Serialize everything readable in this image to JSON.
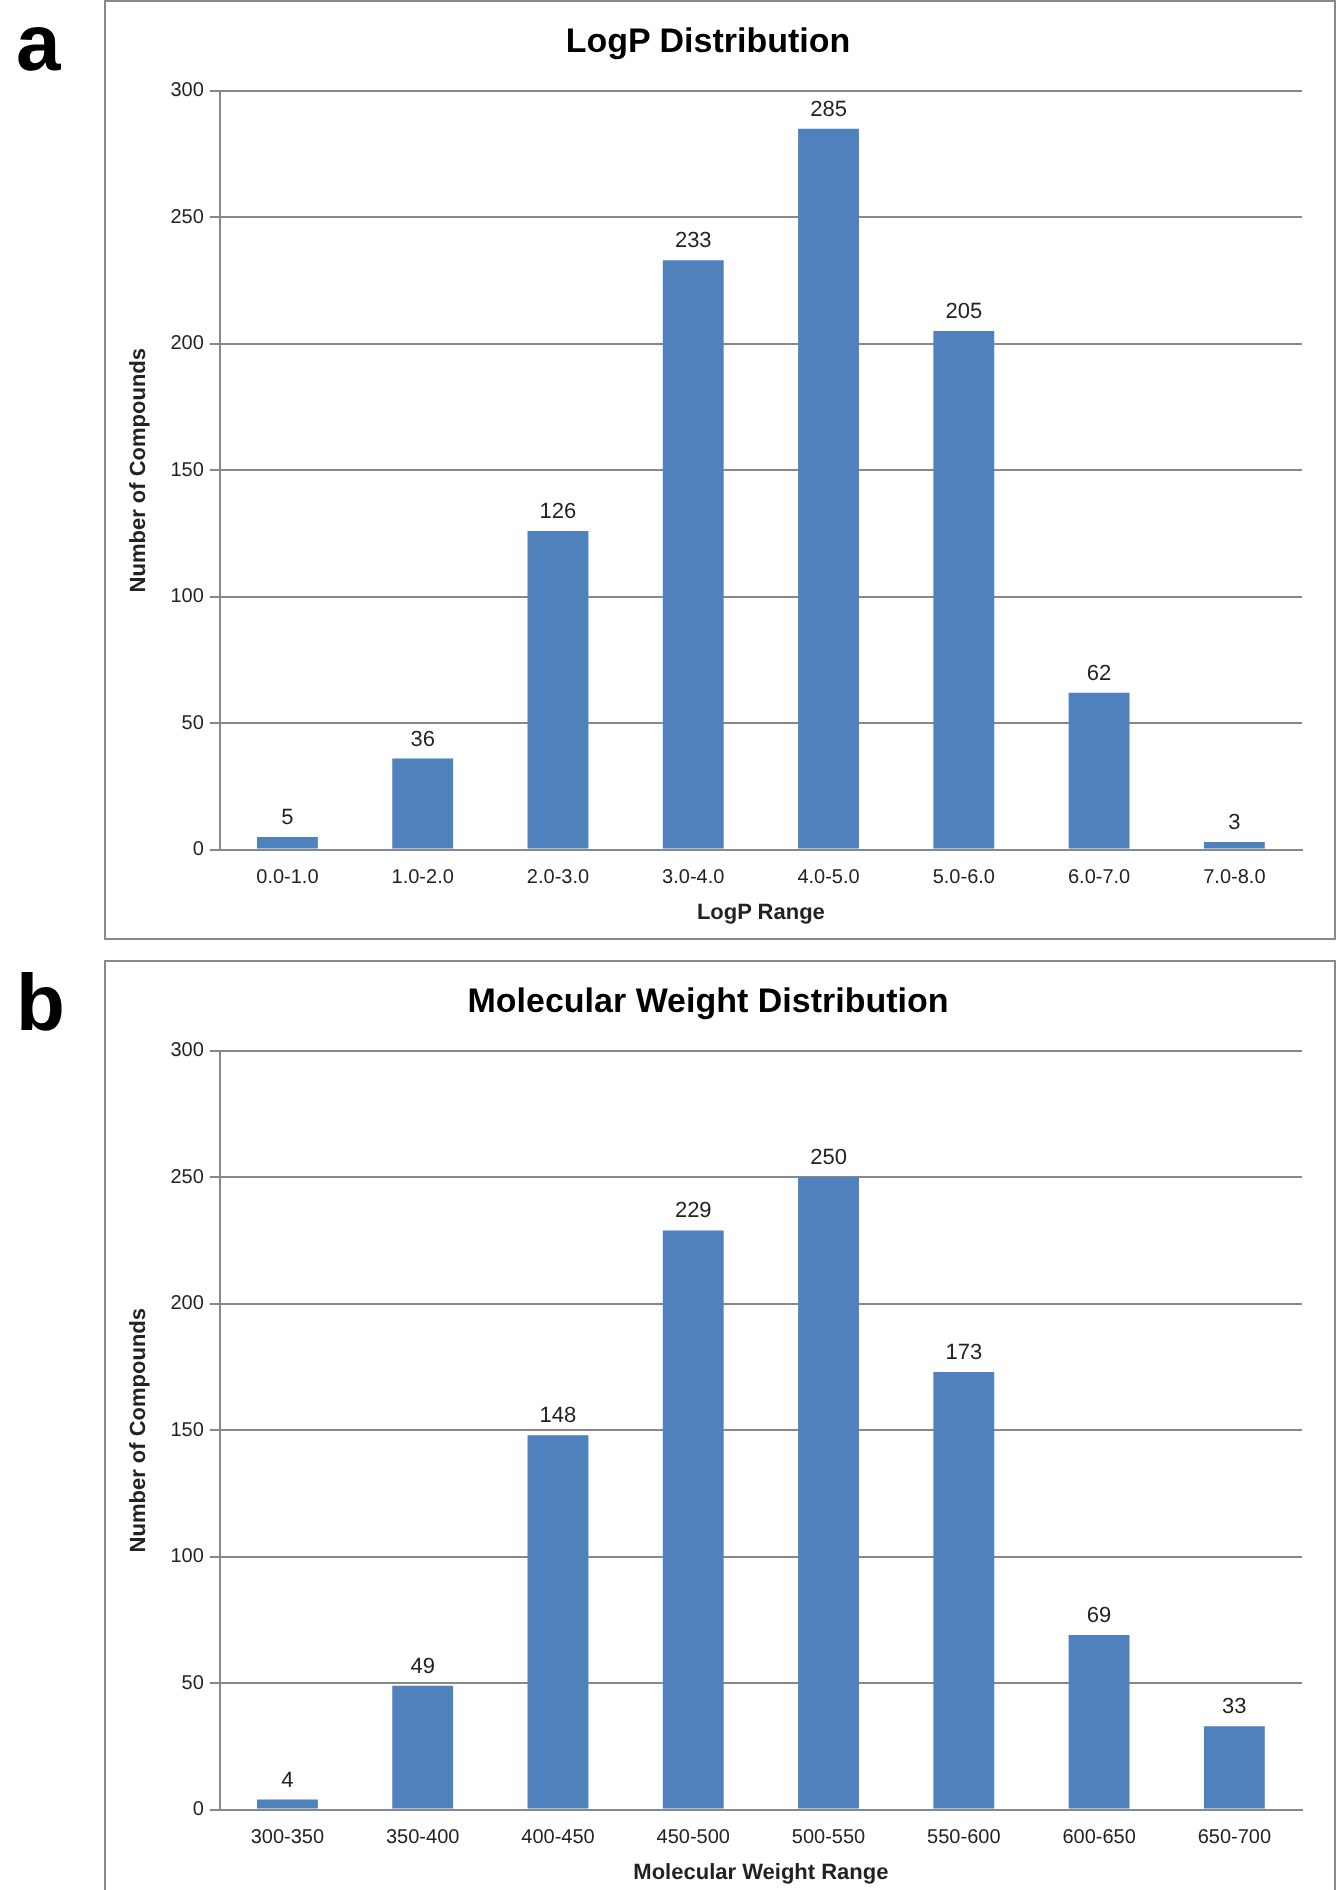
{
  "chart_data": [
    {
      "type": "bar",
      "title": "LogP Distribution",
      "xlabel": "LogP Range",
      "ylabel": "Number of Compounds",
      "annotations": [
        "a"
      ],
      "categories": [
        "0.0-1.0",
        "1.0-2.0",
        "2.0-3.0",
        "3.0-4.0",
        "4.0-5.0",
        "5.0-6.0",
        "6.0-7.0",
        "7.0-8.0"
      ],
      "values": [
        5,
        36,
        126,
        233,
        285,
        205,
        62,
        3
      ],
      "color": "#4f81bd",
      "ylim": [
        0,
        300
      ],
      "yticks": [
        0,
        50,
        100,
        150,
        200,
        250,
        300
      ],
      "grid": "y",
      "data_labels": true,
      "legend": false
    },
    {
      "type": "bar",
      "title": "Molecular Weight Distribution",
      "xlabel": "Molecular Weight Range",
      "ylabel": "Number of Compounds",
      "annotations": [
        "b"
      ],
      "categories": [
        "300-350",
        "350-400",
        "400-450",
        "450-500",
        "500-550",
        "550-600",
        "600-650",
        "650-700"
      ],
      "values": [
        4,
        49,
        148,
        229,
        250,
        173,
        69,
        33
      ],
      "color": "#4f81bd",
      "ylim": [
        0,
        300
      ],
      "yticks": [
        0,
        50,
        100,
        150,
        200,
        250,
        300
      ],
      "grid": "y",
      "data_labels": true,
      "legend": false
    }
  ]
}
